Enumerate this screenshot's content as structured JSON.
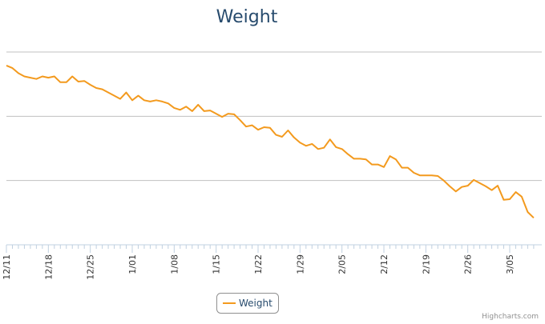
{
  "chart_data": {
    "type": "line",
    "title": "Weight",
    "categories": [
      "12/11",
      null,
      null,
      null,
      null,
      null,
      null,
      "12/18",
      null,
      null,
      null,
      null,
      null,
      null,
      "12/25",
      null,
      null,
      null,
      null,
      null,
      null,
      "1/01",
      null,
      null,
      null,
      null,
      null,
      null,
      "1/08",
      null,
      null,
      null,
      null,
      null,
      null,
      "1/15",
      null,
      null,
      null,
      null,
      null,
      null,
      "1/22",
      null,
      null,
      null,
      null,
      null,
      null,
      "1/29",
      null,
      null,
      null,
      null,
      null,
      null,
      "2/05",
      null,
      null,
      null,
      null,
      null,
      null,
      "2/12",
      null,
      null,
      null,
      null,
      null,
      null,
      "2/19",
      null,
      null,
      null,
      null,
      null,
      null,
      "2/26",
      null,
      null,
      null,
      null,
      null,
      null,
      "3/05",
      null,
      null,
      null,
      null
    ],
    "series": [
      {
        "name": "Weight",
        "color": "#f39a1e",
        "values": [
          2.79,
          2.75,
          2.67,
          2.62,
          2.6,
          2.58,
          2.62,
          2.6,
          2.62,
          2.53,
          2.53,
          2.62,
          2.54,
          2.55,
          2.49,
          2.44,
          2.42,
          2.37,
          2.32,
          2.27,
          2.37,
          2.25,
          2.32,
          2.25,
          2.23,
          2.25,
          2.23,
          2.2,
          2.13,
          2.1,
          2.15,
          2.08,
          2.18,
          2.08,
          2.09,
          2.04,
          1.99,
          2.04,
          2.03,
          1.94,
          1.84,
          1.86,
          1.79,
          1.83,
          1.82,
          1.71,
          1.68,
          1.78,
          1.67,
          1.59,
          1.54,
          1.57,
          1.49,
          1.51,
          1.64,
          1.52,
          1.49,
          1.41,
          1.34,
          1.34,
          1.33,
          1.25,
          1.25,
          1.21,
          1.38,
          1.33,
          1.2,
          1.2,
          1.12,
          1.08,
          1.08,
          1.08,
          1.07,
          1.0,
          0.91,
          0.83,
          0.9,
          0.92,
          1.01,
          0.96,
          0.91,
          0.85,
          0.92,
          0.7,
          0.71,
          0.82,
          0.75,
          0.51,
          0.42
        ]
      }
    ],
    "ylim": [
      0,
      3
    ],
    "yticks": [
      0,
      1,
      2,
      3
    ],
    "grid": true,
    "legend": "bottom",
    "credit": "Highcharts.com"
  }
}
